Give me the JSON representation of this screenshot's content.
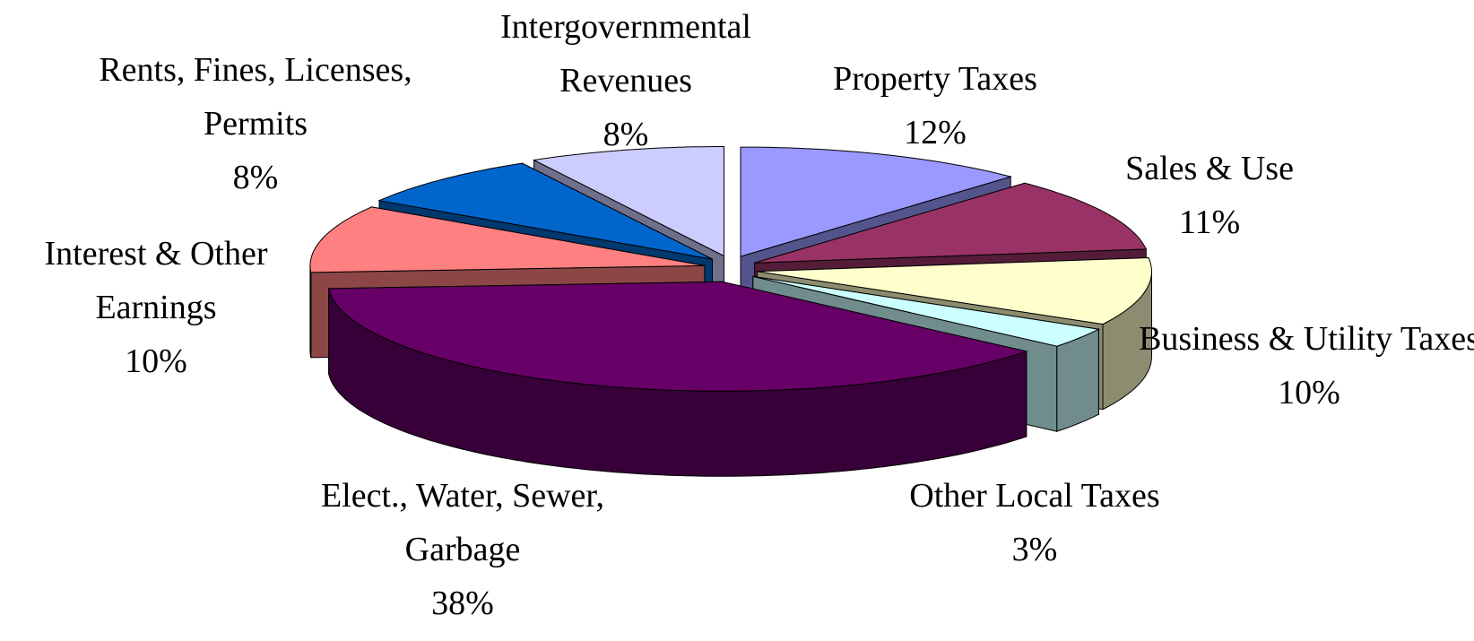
{
  "chart_data": {
    "type": "pie",
    "categories": [
      "Property Taxes",
      "Sales & Use",
      "Business & Utility Taxes",
      "Other Local Taxes",
      "Elect., Water, Sewer, Garbage",
      "Interest & Other Earnings",
      "Rents, Fines, Licenses, Permits",
      "Intergovernmental Revenues"
    ],
    "values": [
      12,
      11,
      10,
      3,
      38,
      10,
      8,
      8
    ],
    "value_labels": [
      "12%",
      "11%",
      "10%",
      "3%",
      "38%",
      "10%",
      "8%",
      "8%"
    ],
    "colors": [
      "#9999ff",
      "#993366",
      "#ffffcc",
      "#ccffff",
      "#660066",
      "#ff8080",
      "#0066cc",
      "#ccccff"
    ]
  }
}
